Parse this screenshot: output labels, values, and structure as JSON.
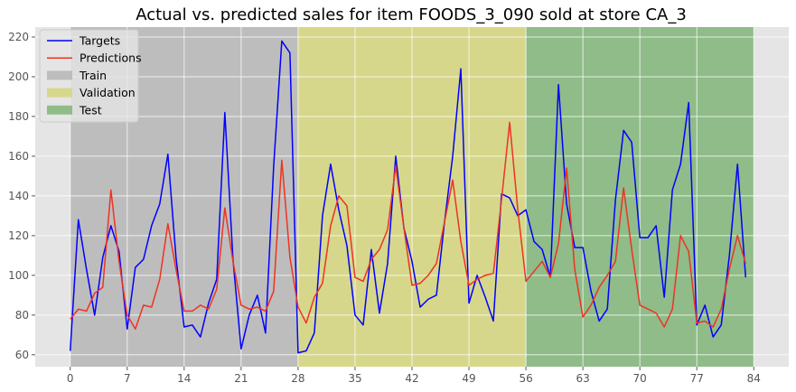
{
  "chart_data": {
    "type": "line",
    "title": "Actual vs. predicted sales for item FOODS_3_090 sold at store CA_3",
    "xlabel": "",
    "ylabel": "",
    "xlim": [
      -4.3,
      88.3
    ],
    "ylim": [
      54,
      225
    ],
    "xticks": [
      0,
      7,
      14,
      21,
      28,
      35,
      42,
      49,
      56,
      63,
      70,
      77,
      84
    ],
    "yticks": [
      60,
      80,
      100,
      120,
      140,
      160,
      180,
      200,
      220
    ],
    "grid": true,
    "legend_position": "top-left",
    "regions": [
      {
        "name": "Train",
        "x0": 0,
        "x1": 28,
        "color": "#bdbdbd"
      },
      {
        "name": "Validation",
        "x0": 28,
        "x1": 56,
        "color": "#d6d78a"
      },
      {
        "name": "Test",
        "x0": 56,
        "x1": 84,
        "color": "#8fbc88"
      }
    ],
    "series": [
      {
        "name": "Targets",
        "color": "#0000ff",
        "values": [
          62,
          128,
          103,
          80,
          109,
          125,
          112,
          73,
          104,
          108,
          125,
          136,
          161,
          109,
          74,
          75,
          69,
          86,
          98,
          182,
          108,
          63,
          80,
          90,
          71,
          155,
          218,
          212,
          61,
          62,
          71,
          130,
          156,
          133,
          115,
          80,
          75,
          113,
          81,
          106,
          160,
          124,
          107,
          84,
          88,
          90,
          127,
          160,
          204,
          86,
          100,
          89,
          77,
          141,
          139,
          130,
          133,
          117,
          113,
          99,
          196,
          136,
          114,
          114,
          92,
          77,
          83,
          138,
          173,
          167,
          119,
          119,
          125,
          89,
          143,
          156,
          187,
          75,
          85,
          69,
          75,
          110,
          156,
          99
        ]
      },
      {
        "name": "Predictions",
        "color": "#ee3322",
        "values": [
          78,
          83,
          82,
          91,
          94,
          143,
          107,
          80,
          73,
          85,
          84,
          98,
          126,
          103,
          82,
          82,
          85,
          83,
          93,
          134,
          107,
          85,
          83,
          84,
          82,
          92,
          158,
          109,
          84,
          76,
          89,
          96,
          125,
          140,
          135,
          99,
          97,
          108,
          113,
          123,
          155,
          124,
          95,
          96,
          100,
          106,
          127,
          148,
          117,
          95,
          98,
          100,
          101,
          138,
          177,
          133,
          97,
          102,
          107,
          99,
          116,
          154,
          103,
          79,
          85,
          94,
          100,
          107,
          144,
          113,
          85,
          83,
          81,
          74,
          83,
          120,
          112,
          76,
          77,
          74,
          83,
          103,
          120,
          106
        ]
      }
    ]
  }
}
